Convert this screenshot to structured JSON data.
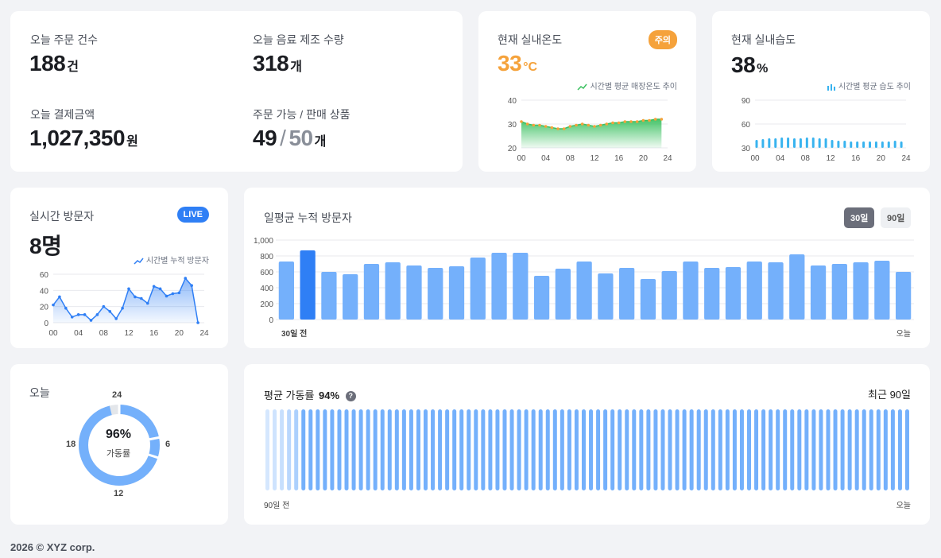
{
  "colors": {
    "accent_blue": "#2f7ff5",
    "bar_blue": "#74b0fb",
    "orange": "#f5a23b",
    "green": "#3cc161",
    "light_blue": "#38b3ef",
    "seg_active": "#6b6e7a"
  },
  "orders": {
    "order_count_label": "오늘 주문 건수",
    "order_count": "188",
    "order_count_unit": "건",
    "drink_count_label": "오늘 음료 제조 수량",
    "drink_count": "318",
    "drink_count_unit": "개",
    "payment_label": "오늘 결제금액",
    "payment": "1,027,350",
    "payment_unit": "원",
    "products_label": "주문 가능 / 판매 상품",
    "products_available": "49",
    "products_sep": "/",
    "products_total": "50",
    "products_unit": "개"
  },
  "temperature": {
    "title": "현재 실내온도",
    "value": "33",
    "unit": "°C",
    "badge": "주의",
    "legend": "시간별 평균 매장온도 추이"
  },
  "humidity": {
    "title": "현재 실내습도",
    "value": "38",
    "unit": "%",
    "legend": "시간별 평균 습도 추이"
  },
  "visitors": {
    "title": "실시간 방문자",
    "value": "8명",
    "badge": "LIVE",
    "legend": "시간별 누적 방문자"
  },
  "daily": {
    "title": "일평균 누적 방문자",
    "btn_30": "30일",
    "btn_90": "90일",
    "start_label": "30일 전",
    "end_label": "오늘"
  },
  "today": {
    "title": "오늘",
    "percent": "96%",
    "percent_label": "가동률",
    "label_top": "24",
    "label_right": "6",
    "label_bottom": "12",
    "label_left": "18"
  },
  "uptime": {
    "title": "평균 가동률",
    "percent": "94%",
    "help": "?",
    "range": "최근 90일",
    "start_label": "90일 전",
    "end_label": "오늘"
  },
  "footer": {
    "text": "2026 © XYZ corp."
  },
  "chart_data": [
    {
      "type": "area",
      "title": "시간별 평균 매장온도 추이",
      "x": [
        0,
        1,
        2,
        3,
        4,
        5,
        6,
        7,
        8,
        9,
        10,
        11,
        12,
        13,
        14,
        15,
        16,
        17,
        18,
        19,
        20,
        21,
        22,
        23
      ],
      "xticks": [
        "00",
        "04",
        "08",
        "12",
        "16",
        "20",
        "24"
      ],
      "yticks": [
        20,
        30,
        40
      ],
      "ylim": [
        20,
        40
      ],
      "series": [
        {
          "values": [
            31,
            30,
            29.5,
            29.5,
            29,
            28.5,
            28,
            28,
            29,
            29.5,
            30,
            29.5,
            29,
            29.5,
            30,
            30.5,
            30.5,
            31,
            31,
            31,
            31.5,
            31.5,
            32,
            32
          ]
        }
      ]
    },
    {
      "type": "bar",
      "title": "시간별 평균 습도 추이",
      "x": [
        0,
        1,
        2,
        3,
        4,
        5,
        6,
        7,
        8,
        9,
        10,
        11,
        12,
        13,
        14,
        15,
        16,
        17,
        18,
        19,
        20,
        21,
        22,
        23
      ],
      "xticks": [
        "00",
        "04",
        "08",
        "12",
        "16",
        "20",
        "24"
      ],
      "yticks": [
        30,
        60,
        90
      ],
      "ylim": [
        30,
        90
      ],
      "values": [
        40,
        41,
        42,
        42,
        43,
        43,
        42,
        42,
        43,
        43,
        42,
        42,
        40,
        39,
        39,
        38,
        38,
        38,
        38,
        38,
        38,
        38,
        39,
        38
      ]
    },
    {
      "type": "area",
      "title": "시간별 누적 방문자",
      "x": [
        0,
        1,
        2,
        3,
        4,
        5,
        6,
        7,
        8,
        9,
        10,
        11,
        12,
        13,
        14,
        15,
        16,
        17,
        18,
        19,
        20,
        21,
        22,
        23
      ],
      "xticks": [
        "00",
        "04",
        "08",
        "12",
        "16",
        "20",
        "24"
      ],
      "yticks": [
        0,
        20,
        40,
        60
      ],
      "ylim": [
        0,
        60
      ],
      "series": [
        {
          "values": [
            22,
            32,
            18,
            7,
            10,
            10,
            3,
            10,
            20,
            14,
            5,
            18,
            42,
            32,
            30,
            24,
            45,
            42,
            33,
            36,
            37,
            55,
            46,
            0
          ]
        }
      ]
    },
    {
      "type": "bar",
      "title": "일평균 누적 방문자",
      "yticks": [
        "0",
        "200",
        "400",
        "600",
        "800",
        "1,000"
      ],
      "ylim": [
        0,
        1000
      ],
      "values": [
        730,
        870,
        600,
        570,
        700,
        720,
        680,
        650,
        670,
        780,
        840,
        840,
        550,
        640,
        730,
        580,
        650,
        510,
        610,
        730,
        650,
        660,
        730,
        720,
        820,
        680,
        700,
        720,
        740,
        600
      ],
      "highlight_index": 1
    },
    {
      "type": "pie",
      "title": "오늘",
      "center_value": "96%",
      "slices": [
        {
          "label": "가동",
          "value": 96
        },
        {
          "label": "중단",
          "value": 4
        }
      ]
    },
    {
      "type": "bar",
      "title": "평균 가동률",
      "days": 90,
      "values": [
        0.15,
        0.2,
        0.25,
        0.35,
        0.45,
        1,
        1,
        1,
        1,
        1,
        1,
        1,
        1,
        1,
        1,
        1,
        1,
        1,
        1,
        1,
        1,
        1,
        1,
        1,
        1,
        1,
        1,
        1,
        1,
        1,
        1,
        1,
        1,
        1,
        1,
        1,
        1,
        1,
        1,
        1,
        1,
        1,
        1,
        1,
        1,
        1,
        1,
        1,
        1,
        1,
        1,
        1,
        1,
        1,
        1,
        1,
        1,
        1,
        1,
        1,
        1,
        1,
        1,
        1,
        1,
        1,
        1,
        1,
        1,
        1,
        1,
        1,
        1,
        1,
        1,
        1,
        1,
        1,
        1,
        1,
        1,
        1,
        1,
        1,
        1,
        1,
        1,
        1,
        1,
        1
      ]
    }
  ]
}
